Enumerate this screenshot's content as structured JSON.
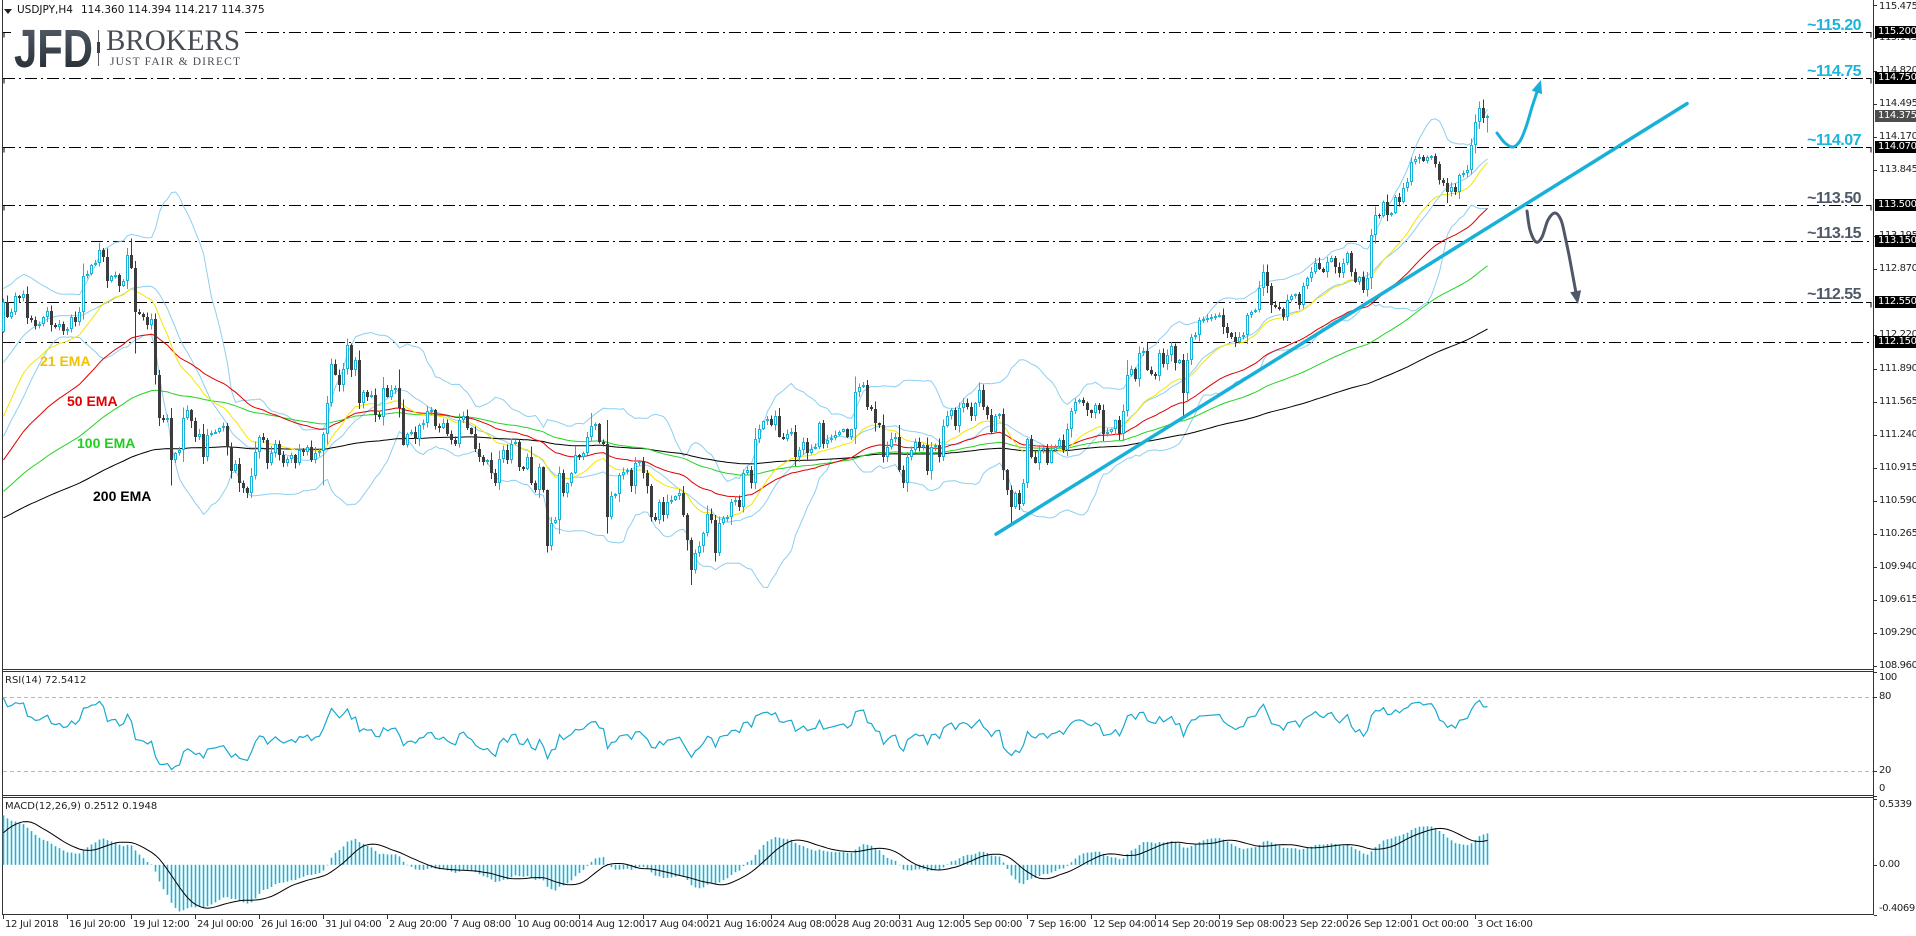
{
  "header": {
    "title": "USDJPY,H4",
    "ohlc": "114.360 114.394 114.217 114.375"
  },
  "logo": {
    "brand": "JFD",
    "name": "BROKERS",
    "tagline": "JUST FAIR & DIRECT"
  },
  "colors": {
    "background": "#ffffff",
    "frame": "#333333",
    "bull": "#19b2d8",
    "bear": "#3c3c3c",
    "ema21": "#f2e600",
    "ema50": "#e00000",
    "ema100": "#22d422",
    "ema200": "#000000",
    "bollinger": "#8dcff0",
    "level_line": "#000000",
    "trendline": "#18b0d8",
    "bullish_note": "#1ab4dc",
    "bearish_note": "#4e5866",
    "bullish_arrow": "#18b0d8",
    "bearish_arrow": "#4e5866",
    "rsi_line": "#17a9d1",
    "rsi_level": "#b8b8b8",
    "macd_hist": "#1ab2d8",
    "macd_signal": "#000000",
    "current_price_bg": "#4d4d4d",
    "logo_text": "#474c54"
  },
  "price_axis": {
    "ticks": [
      {
        "label": "115.475",
        "price": 115.475
      },
      {
        "label": "115.145",
        "price": 115.145
      },
      {
        "label": "114.820",
        "price": 114.82
      },
      {
        "label": "114.495",
        "price": 114.495
      },
      {
        "label": "114.170",
        "price": 114.17
      },
      {
        "label": "113.845",
        "price": 113.845
      },
      {
        "label": "113.195",
        "price": 113.195
      },
      {
        "label": "112.870",
        "price": 112.87
      },
      {
        "label": "112.220",
        "price": 112.22
      },
      {
        "label": "111.890",
        "price": 111.89
      },
      {
        "label": "111.565",
        "price": 111.565
      },
      {
        "label": "111.240",
        "price": 111.24
      },
      {
        "label": "110.915",
        "price": 110.915
      },
      {
        "label": "110.590",
        "price": 110.59
      },
      {
        "label": "110.265",
        "price": 110.265
      },
      {
        "label": "109.940",
        "price": 109.94
      },
      {
        "label": "109.615",
        "price": 109.615
      },
      {
        "label": "109.290",
        "price": 109.29
      },
      {
        "label": "108.960",
        "price": 108.96
      }
    ],
    "current_price": {
      "label": "114.375",
      "price": 114.375
    }
  },
  "levels": [
    {
      "price": 115.2,
      "annotation": "~115.20",
      "axis_label": "115.200",
      "scenario": "bullish",
      "left_marker": true,
      "right_marker": true
    },
    {
      "price": 114.75,
      "annotation": "~114.75",
      "axis_label": "114.750",
      "scenario": "bullish",
      "left_marker": true,
      "right_marker": true
    },
    {
      "price": 114.07,
      "annotation": "~114.07",
      "axis_label": "114.070",
      "scenario": "bullish",
      "left_marker": true,
      "right_marker": true
    },
    {
      "price": 113.5,
      "annotation": "~113.50",
      "axis_label": "113.500",
      "scenario": "bearish",
      "left_marker": true,
      "right_marker": true
    },
    {
      "price": 113.15,
      "annotation": "~113.15",
      "axis_label": "113.150",
      "scenario": "bearish",
      "left_marker": false,
      "right_marker": false
    },
    {
      "price": 112.55,
      "annotation": "~112.55",
      "axis_label": "112.550",
      "scenario": "bearish",
      "left_marker": false,
      "right_marker": true
    },
    {
      "price": 112.15,
      "annotation": "",
      "axis_label": "112.150",
      "scenario": "bearish",
      "left_marker": false,
      "right_marker": false
    }
  ],
  "ema_labels": [
    {
      "text": "21 EMA",
      "period": 21,
      "color": "#f2c200"
    },
    {
      "text": "50 EMA",
      "period": 50,
      "color": "#e20000"
    },
    {
      "text": "100 EMA",
      "period": 100,
      "color": "#1ecf1e"
    },
    {
      "text": "200 EMA",
      "period": 200,
      "color": "#000000"
    }
  ],
  "annotations": {
    "trendline": {
      "bar1": 248.25,
      "price1": 110.26,
      "bar2": 421,
      "price2": 114.5
    },
    "bullish_arrow": {
      "points": [
        [
          1497,
          133
        ],
        [
          1505,
          143
        ],
        [
          1513,
          147
        ],
        [
          1520,
          141
        ],
        [
          1526,
          127
        ],
        [
          1532,
          107
        ]
      ],
      "head_tip": [
        1541,
        80
      ]
    },
    "bearish_arrow": {
      "points": [
        [
          1527,
          211
        ],
        [
          1530,
          230
        ],
        [
          1536,
          242
        ],
        [
          1542,
          237
        ],
        [
          1548,
          220
        ],
        [
          1555,
          213
        ],
        [
          1561,
          220
        ],
        [
          1565,
          236
        ],
        [
          1569,
          255
        ]
      ],
      "head_tip": [
        1578,
        304
      ]
    }
  },
  "rsi_pane": {
    "title": "RSI(14) 72.5412",
    "levels": [
      80,
      20
    ],
    "axis_labels": [
      {
        "label": "100",
        "value": 100
      },
      {
        "label": "80",
        "value": 80
      },
      {
        "label": "20",
        "value": 20
      },
      {
        "label": "0",
        "value": 0
      }
    ]
  },
  "macd_pane": {
    "title": "MACD(12,26,9) 0.2512 0.1948",
    "range": [
      -0.4069,
      0.5339
    ],
    "axis_labels": [
      {
        "label": "0.5339",
        "value": 0.5339
      },
      {
        "label": "0.00",
        "value": 0
      },
      {
        "label": "-0.4069",
        "value": -0.4069
      }
    ]
  },
  "time_axis": {
    "labels": [
      {
        "label": "12 Jul 2018",
        "bar": 0
      },
      {
        "label": "16 Jul 20:00",
        "bar": 16
      },
      {
        "label": "19 Jul 12:00",
        "bar": 32
      },
      {
        "label": "24 Jul 00:00",
        "bar": 48
      },
      {
        "label": "26 Jul 16:00",
        "bar": 64
      },
      {
        "label": "31 Jul 04:00",
        "bar": 80
      },
      {
        "label": "2 Aug 20:00",
        "bar": 96
      },
      {
        "label": "7 Aug 08:00",
        "bar": 112
      },
      {
        "label": "10 Aug 00:00",
        "bar": 128
      },
      {
        "label": "14 Aug 12:00",
        "bar": 144
      },
      {
        "label": "17 Aug 04:00",
        "bar": 160
      },
      {
        "label": "21 Aug 16:00",
        "bar": 176
      },
      {
        "label": "24 Aug 08:00",
        "bar": 192
      },
      {
        "label": "28 Aug 20:00",
        "bar": 208
      },
      {
        "label": "31 Aug 12:00",
        "bar": 224
      },
      {
        "label": "5 Sep 00:00",
        "bar": 240
      },
      {
        "label": "7 Sep 16:00",
        "bar": 256
      },
      {
        "label": "12 Sep 04:00",
        "bar": 272
      },
      {
        "label": "14 Sep 20:00",
        "bar": 288
      },
      {
        "label": "19 Sep 08:00",
        "bar": 304
      },
      {
        "label": "23 Sep 22:00",
        "bar": 320
      },
      {
        "label": "26 Sep 12:00",
        "bar": 336
      },
      {
        "label": "1 Oct 00:00",
        "bar": 352
      },
      {
        "label": "3 Oct 16:00",
        "bar": 368
      }
    ]
  },
  "chart_data": {
    "type": "candlestick",
    "title": "USDJPY,H4",
    "xlabel": "",
    "ylabel": "",
    "grid": false,
    "legend": "none",
    "y_range": [
      108.921,
      115.52
    ],
    "y_tick_labels": [
      "115.475",
      "115.145",
      "114.820",
      "114.495",
      "114.170",
      "113.845",
      "113.195",
      "112.870",
      "112.220",
      "111.890",
      "111.565",
      "111.240",
      "110.915",
      "110.590",
      "110.265",
      "109.940",
      "109.615",
      "109.290",
      "108.960"
    ],
    "x_tick_labels": [
      "12 Jul 2018",
      "16 Jul 20:00",
      "19 Jul 12:00",
      "24 Jul 00:00",
      "26 Jul 16:00",
      "31 Jul 04:00",
      "2 Aug 20:00",
      "7 Aug 08:00",
      "10 Aug 00:00",
      "14 Aug 12:00",
      "17 Aug 04:00",
      "21 Aug 16:00",
      "24 Aug 08:00",
      "28 Aug 20:00",
      "31 Aug 12:00",
      "5 Sep 00:00",
      "7 Sep 16:00",
      "12 Sep 04:00",
      "14 Sep 20:00",
      "19 Sep 08:00",
      "23 Sep 22:00",
      "26 Sep 12:00",
      "1 Oct 00:00",
      "3 Oct 16:00"
    ],
    "last_bar": {
      "open": 114.36,
      "high": 114.394,
      "low": 114.217,
      "close": 114.375
    },
    "first_open": 112.25,
    "closes": [
      112.55,
      112.4,
      112.45,
      112.6,
      112.58,
      112.62,
      112.39,
      112.37,
      112.31,
      112.33,
      112.4,
      112.46,
      112.32,
      112.3,
      112.33,
      112.26,
      112.28,
      112.4,
      112.35,
      112.45,
      112.8,
      112.82,
      112.91,
      112.93,
      113.06,
      112.99,
      112.75,
      112.8,
      112.81,
      112.7,
      112.75,
      113.01,
      112.88,
      112.45,
      112.43,
      112.4,
      112.32,
      112.38,
      111.83,
      111.4,
      111.38,
      111.4,
      110.99,
      111.06,
      111.09,
      111.4,
      111.48,
      111.37,
      111.22,
      111.25,
      111.02,
      111.24,
      111.26,
      111.27,
      111.3,
      111.32,
      111.12,
      110.88,
      110.95,
      110.76,
      110.71,
      110.66,
      110.83,
      111.07,
      111.22,
      111.19,
      110.96,
      111.06,
      111.15,
      111.04,
      110.96,
      111.0,
      111.04,
      110.96,
      111.09,
      111.07,
      111.12,
      110.99,
      111.06,
      111.08,
      111.25,
      111.55,
      111.93,
      111.83,
      111.73,
      111.89,
      112.12,
      111.88,
      111.97,
      111.55,
      111.66,
      111.61,
      111.63,
      111.43,
      111.41,
      111.7,
      111.61,
      111.68,
      111.7,
      111.5,
      111.14,
      111.25,
      111.27,
      111.2,
      111.33,
      111.35,
      111.47,
      111.48,
      111.32,
      111.3,
      111.35,
      111.25,
      111.19,
      111.15,
      111.38,
      111.42,
      111.3,
      111.25,
      111.1,
      111.02,
      110.97,
      110.99,
      110.86,
      110.76,
      111.0,
      111.09,
      110.99,
      111.15,
      111.17,
      110.92,
      110.9,
      111.02,
      110.76,
      110.69,
      110.92,
      110.69,
      110.14,
      110.37,
      110.4,
      110.86,
      110.66,
      110.76,
      110.86,
      111.04,
      111.02,
      111.06,
      111.22,
      111.32,
      111.34,
      111.17,
      111.15,
      110.43,
      110.63,
      110.65,
      110.84,
      110.87,
      110.89,
      110.73,
      110.96,
      110.98,
      110.86,
      110.73,
      110.43,
      110.4,
      110.58,
      110.45,
      110.58,
      110.6,
      110.63,
      110.66,
      110.45,
      110.2,
      109.91,
      110.07,
      110.14,
      110.27,
      110.46,
      110.4,
      110.07,
      110.37,
      110.42,
      110.43,
      110.58,
      110.6,
      110.53,
      110.86,
      110.89,
      110.76,
      111.2,
      111.29,
      111.37,
      111.39,
      111.33,
      111.42,
      111.22,
      111.2,
      111.25,
      111.27,
      111.02,
      111.09,
      111.17,
      111.06,
      111.1,
      111.12,
      111.35,
      111.15,
      111.19,
      111.21,
      111.24,
      111.27,
      111.29,
      111.22,
      111.29,
      111.66,
      111.71,
      111.73,
      111.51,
      111.49,
      111.35,
      111.33,
      111.02,
      111.12,
      111.2,
      111.22,
      110.89,
      110.76,
      111.02,
      111.09,
      111.17,
      111.12,
      111.14,
      110.88,
      111.12,
      111.14,
      111.02,
      111.32,
      111.42,
      111.48,
      111.32,
      111.5,
      111.55,
      111.51,
      111.42,
      111.55,
      111.68,
      111.51,
      111.43,
      111.27,
      111.42,
      111.44,
      110.89,
      110.69,
      110.53,
      110.66,
      110.56,
      110.76,
      111.2,
      111.02,
      110.96,
      111.09,
      111.11,
      110.96,
      111.09,
      111.12,
      111.19,
      111.09,
      111.29,
      111.47,
      111.56,
      111.58,
      111.55,
      111.48,
      111.45,
      111.53,
      111.48,
      111.25,
      111.27,
      111.29,
      111.38,
      111.25,
      111.47,
      111.83,
      111.89,
      111.79,
      112.04,
      112.06,
      111.88,
      111.84,
      111.82,
      112.04,
      111.93,
      112.02,
      112.11,
      111.94,
      111.97,
      111.65,
      111.97,
      112.2,
      112.22,
      112.37,
      112.38,
      112.39,
      112.4,
      112.41,
      112.42,
      112.3,
      112.24,
      112.2,
      112.15,
      112.2,
      112.22,
      112.42,
      112.45,
      112.47,
      112.68,
      112.84,
      112.7,
      112.52,
      112.5,
      112.48,
      112.4,
      112.57,
      112.6,
      112.62,
      112.52,
      112.7,
      112.78,
      112.84,
      112.93,
      112.87,
      112.84,
      112.94,
      112.98,
      112.89,
      112.83,
      112.93,
      113.03,
      112.84,
      112.74,
      112.79,
      112.66,
      112.78,
      113.21,
      113.4,
      113.39,
      113.53,
      113.4,
      113.42,
      113.58,
      113.53,
      113.67,
      113.73,
      113.92,
      113.95,
      113.97,
      113.93,
      113.97,
      113.98,
      113.9,
      113.75,
      113.72,
      113.63,
      113.68,
      113.63,
      113.8,
      113.82,
      113.85,
      114.09,
      114.32,
      114.46,
      114.36,
      114.375
    ],
    "wick_overrides": [
      {
        "bar": 24,
        "high": 113.13
      },
      {
        "bar": 32,
        "high": 113.17
      },
      {
        "bar": 33,
        "low": 112.04
      },
      {
        "bar": 42,
        "low": 110.74
      },
      {
        "bar": 80,
        "low": 110.74
      },
      {
        "bar": 99,
        "high": 111.88
      },
      {
        "bar": 136,
        "low": 110.08
      },
      {
        "bar": 147,
        "high": 111.45
      },
      {
        "bar": 172,
        "low": 109.76
      },
      {
        "bar": 213,
        "high": 111.81
      },
      {
        "bar": 252,
        "low": 110.37
      },
      {
        "bar": 295,
        "low": 111.43
      },
      {
        "bar": 361,
        "low": 113.52
      },
      {
        "bar": 369,
        "high": 114.52
      },
      {
        "bar": 370,
        "high": 114.54
      }
    ],
    "overlays": {
      "ema_periods": [
        200,
        100,
        50,
        21
      ],
      "bollinger": {
        "period": 20,
        "deviations": 2
      }
    },
    "indicator_start": {
      "ema": {
        "21": 111.42,
        "50": 110.99,
        "100": 110.68,
        "200": 110.42
      },
      "bb_middle": 111.95,
      "rsi": 79,
      "macd_main": 0.4,
      "macd_signal": 0.26
    },
    "horizontal_levels": [
      115.2,
      114.75,
      114.07,
      113.5,
      113.15,
      112.55,
      112.15
    ],
    "subcharts": [
      {
        "name": "RSI(14)",
        "value": 72.5412,
        "range": [
          0,
          100
        ],
        "levels": [
          20,
          80
        ]
      },
      {
        "name": "MACD(12,26,9)",
        "main": 0.2512,
        "signal": 0.1948,
        "range": [
          -0.4069,
          0.5339
        ]
      }
    ]
  }
}
